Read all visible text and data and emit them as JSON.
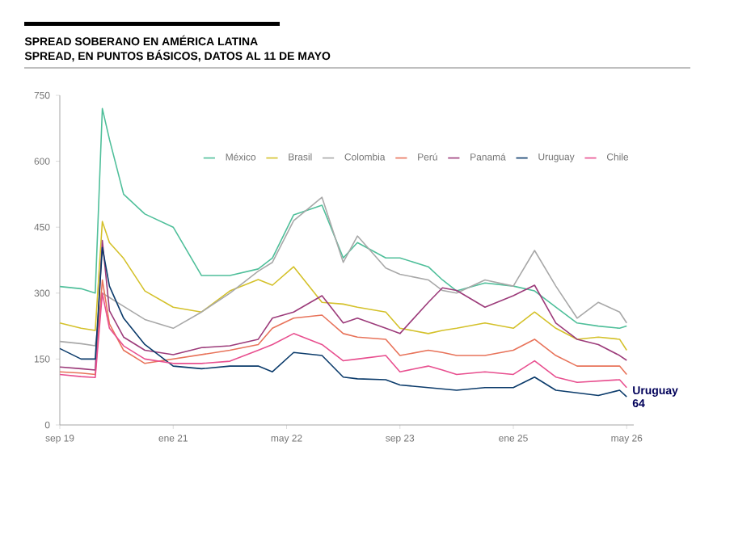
{
  "chart_data": {
    "type": "line",
    "title": "SPREAD SOBERANO EN AMÉRICA LATINA",
    "subtitle": "SPREAD, EN PUNTOS BÁSICOS, DATOS AL 11 DE MAYO",
    "x": [
      "2019-09",
      "2019-12",
      "2020-02",
      "2020-03",
      "2020-04",
      "2020-06",
      "2020-09",
      "2021-01",
      "2021-05",
      "2021-09",
      "2022-01",
      "2022-03",
      "2022-06",
      "2022-10",
      "2023-01",
      "2023-03",
      "2023-07",
      "2023-09",
      "2024-01",
      "2024-03",
      "2024-05",
      "2024-09",
      "2025-01",
      "2025-04",
      "2025-07",
      "2025-10",
      "2026-01",
      "2026-04",
      "2026-05"
    ],
    "series": [
      {
        "name": "México",
        "color": "#4fbf9a",
        "values": [
          315,
          310,
          300,
          720,
          650,
          525,
          480,
          450,
          340,
          340,
          355,
          380,
          478,
          500,
          380,
          415,
          380,
          380,
          360,
          330,
          305,
          323,
          316,
          305,
          268,
          232,
          225,
          220,
          225
        ]
      },
      {
        "name": "Brasil",
        "color": "#d4c12a",
        "values": [
          232,
          220,
          215,
          463,
          415,
          379,
          305,
          268,
          257,
          305,
          331,
          318,
          360,
          279,
          275,
          268,
          257,
          220,
          208,
          215,
          220,
          232,
          220,
          257,
          220,
          195,
          200,
          195,
          170
        ]
      },
      {
        "name": "Colombia",
        "color": "#a8a8a8",
        "values": [
          190,
          185,
          180,
          300,
          290,
          270,
          240,
          220,
          257,
          300,
          350,
          370,
          465,
          518,
          370,
          430,
          357,
          343,
          330,
          306,
          300,
          330,
          316,
          397,
          316,
          243,
          279,
          257,
          232
        ]
      },
      {
        "name": "Perú",
        "color": "#e8735a",
        "values": [
          121,
          118,
          115,
          330,
          230,
          170,
          140,
          150,
          160,
          170,
          183,
          220,
          243,
          250,
          208,
          200,
          195,
          158,
          170,
          165,
          158,
          158,
          170,
          195,
          158,
          134,
          134,
          134,
          115
        ]
      },
      {
        "name": "Panamá",
        "color": "#9c3b7a",
        "values": [
          132,
          128,
          125,
          420,
          260,
          200,
          170,
          160,
          176,
          180,
          195,
          243,
          257,
          294,
          232,
          243,
          220,
          208,
          279,
          312,
          306,
          268,
          294,
          318,
          232,
          195,
          183,
          158,
          147
        ]
      },
      {
        "name": "Uruguay",
        "color": "#0b3b6b",
        "values": [
          174,
          150,
          150,
          404,
          316,
          243,
          183,
          134,
          128,
          134,
          134,
          121,
          165,
          158,
          109,
          105,
          103,
          91,
          85,
          82,
          79,
          85,
          85,
          109,
          79,
          73,
          67,
          79,
          64
        ]
      },
      {
        "name": "Chile",
        "color": "#e84f8f",
        "values": [
          115,
          110,
          108,
          300,
          220,
          180,
          150,
          140,
          140,
          145,
          170,
          183,
          208,
          183,
          146,
          150,
          158,
          121,
          134,
          125,
          115,
          121,
          115,
          146,
          109,
          97,
          100,
          103,
          85
        ]
      }
    ],
    "xlim": [
      "2019-09",
      "2026-06"
    ],
    "xticks": [
      {
        "value": "2019-09",
        "label": "sep 19"
      },
      {
        "value": "2021-01",
        "label": "ene 21"
      },
      {
        "value": "2022-05",
        "label": "may 22"
      },
      {
        "value": "2023-09",
        "label": "sep 23"
      },
      {
        "value": "2025-01",
        "label": "ene 25"
      },
      {
        "value": "2026-05",
        "label": "may 26"
      }
    ],
    "ylim": [
      0,
      750
    ],
    "yticks": [
      0,
      150,
      300,
      450,
      600,
      750
    ],
    "annotations": [
      {
        "text": "Uruguay 64",
        "x": "2026-05",
        "y": 64
      }
    ],
    "legend": "top right",
    "grid": false,
    "marker": "none",
    "line_style": "solid"
  }
}
